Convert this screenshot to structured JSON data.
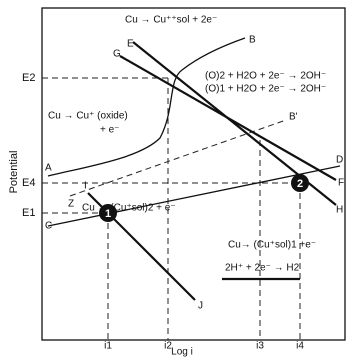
{
  "axes": {
    "y_label": "Potential",
    "x_label": "Log i"
  },
  "potentials": [
    "E2",
    "E4",
    "E1"
  ],
  "currents": [
    "i1",
    "i2",
    "i3",
    "i4"
  ],
  "points": [
    "1",
    "2"
  ],
  "curve_letters": [
    "A",
    "B",
    "B'",
    "C",
    "D",
    "E",
    "F",
    "G",
    "H",
    "I",
    "J",
    "Z"
  ],
  "reactions": {
    "cu_sol": "Cu → Cu⁺⁺sol + 2e⁻",
    "o2": "(O)2 + H2O + 2e⁻ → 2OH⁻",
    "o1": "(O)1 + H2O + 2e⁻ → 2OH⁻",
    "cu_oxide": "Cu → Cu⁺ (oxide)",
    "cu_oxide_e": "+ e⁻",
    "cu_sol2": "Cu → (Cu⁺sol)2 + e⁻",
    "cu_sol1": "Cu→ (Cu⁺sol)1 +e⁻",
    "h2": "2H⁺ + 2e⁻ → H2"
  }
}
